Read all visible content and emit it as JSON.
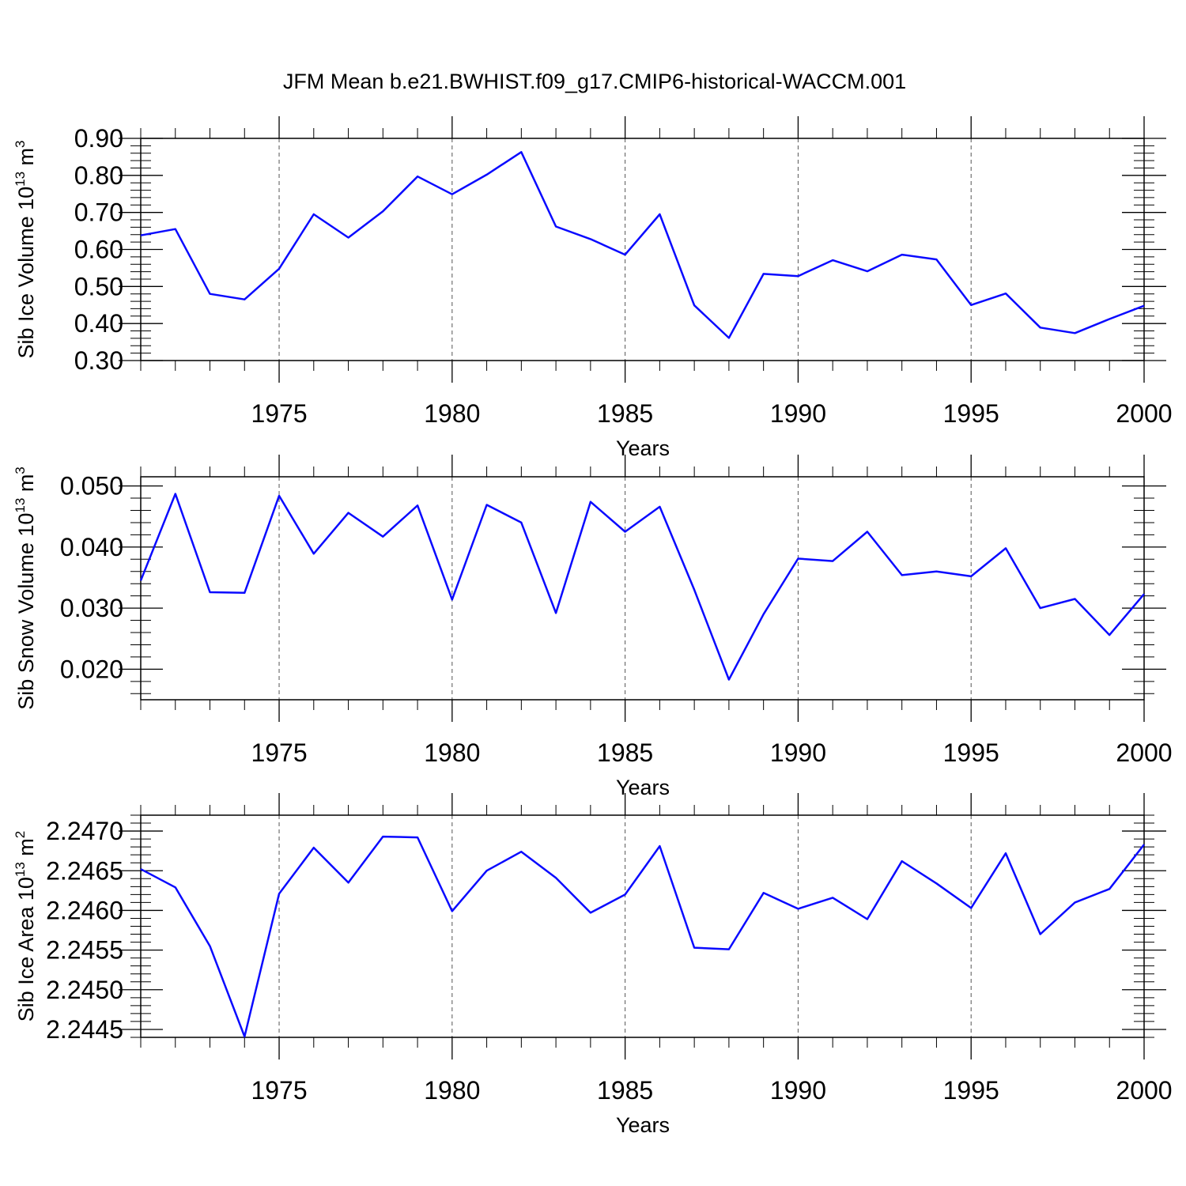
{
  "title": "JFM Mean b.e21.BWHIST.f09_g17.CMIP6-historical-WACCM.001",
  "colors": {
    "line": "#0a0aff",
    "axis": "#000000",
    "grid": "#555555"
  },
  "chart_data": [
    {
      "type": "line",
      "ylabel": {
        "main": "Sib Ice Volume 10",
        "exp13": "13",
        "unit": " m",
        "exp3": "3"
      },
      "xlabel": "Years",
      "xlim": [
        1971,
        2000
      ],
      "ylim": [
        0.3,
        0.9
      ],
      "yticks": [
        0.3,
        0.4,
        0.5,
        0.6,
        0.7,
        0.8,
        0.9
      ],
      "ytick_labels": [
        "0.30",
        "0.40",
        "0.50",
        "0.60",
        "0.70",
        "0.80",
        "0.90"
      ],
      "xticks": [
        1975,
        1980,
        1985,
        1990,
        1995,
        2000
      ],
      "xtick_labels": [
        "1975",
        "1980",
        "1985",
        "1990",
        "1995",
        "2000"
      ],
      "grid": "vertical dashed at major x ticks",
      "series": [
        {
          "name": "Sib Ice Volume",
          "x": [
            1971,
            1972,
            1973,
            1974,
            1975,
            1976,
            1977,
            1978,
            1979,
            1980,
            1981,
            1982,
            1983,
            1984,
            1985,
            1986,
            1987,
            1988,
            1989,
            1990,
            1991,
            1992,
            1993,
            1994,
            1995,
            1996,
            1997,
            1998,
            1999,
            2000
          ],
          "values": [
            0.638,
            0.655,
            0.48,
            0.465,
            0.548,
            0.695,
            0.632,
            0.703,
            0.797,
            0.749,
            0.802,
            0.863,
            0.662,
            0.628,
            0.586,
            0.695,
            0.449,
            0.361,
            0.534,
            0.528,
            0.571,
            0.541,
            0.586,
            0.573,
            0.45,
            0.481,
            0.389,
            0.374,
            0.412,
            0.448
          ]
        }
      ]
    },
    {
      "type": "line",
      "ylabel": {
        "main": "Sib Snow Volume 10",
        "exp13": "13",
        "unit": " m",
        "exp3": "3"
      },
      "xlabel": "Years",
      "xlim": [
        1971,
        2000
      ],
      "ylim": [
        0.015,
        0.0515
      ],
      "yticks": [
        0.02,
        0.03,
        0.04,
        0.05
      ],
      "ytick_labels": [
        "0.020",
        "0.030",
        "0.040",
        "0.050"
      ],
      "xticks": [
        1975,
        1980,
        1985,
        1990,
        1995,
        2000
      ],
      "xtick_labels": [
        "1975",
        "1980",
        "1985",
        "1990",
        "1995",
        "2000"
      ],
      "grid": "vertical dashed at major x ticks",
      "series": [
        {
          "name": "Sib Snow Volume",
          "x": [
            1971,
            1972,
            1973,
            1974,
            1975,
            1976,
            1977,
            1978,
            1979,
            1980,
            1981,
            1982,
            1983,
            1984,
            1985,
            1986,
            1987,
            1988,
            1989,
            1990,
            1991,
            1992,
            1993,
            1994,
            1995,
            1996,
            1997,
            1998,
            1999,
            2000
          ],
          "values": [
            0.0345,
            0.0487,
            0.0326,
            0.0325,
            0.0484,
            0.0389,
            0.0456,
            0.0417,
            0.0468,
            0.0314,
            0.0469,
            0.044,
            0.0292,
            0.0474,
            0.0425,
            0.0466,
            0.033,
            0.0183,
            0.029,
            0.0381,
            0.0377,
            0.0425,
            0.0354,
            0.036,
            0.0352,
            0.0398,
            0.03,
            0.0315,
            0.0256,
            0.0323
          ]
        }
      ]
    },
    {
      "type": "line",
      "ylabel": {
        "main": "Sib Ice Area 10",
        "exp13": "13",
        "unit": " m",
        "exp3": "2"
      },
      "xlabel": "Years",
      "xlim": [
        1971,
        2000
      ],
      "ylim": [
        2.2444,
        2.2472
      ],
      "yticks": [
        2.2445,
        2.245,
        2.2455,
        2.246,
        2.2465,
        2.247
      ],
      "ytick_labels": [
        "2.2445",
        "2.2450",
        "2.2455",
        "2.2460",
        "2.2465",
        "2.2470"
      ],
      "xticks": [
        1975,
        1980,
        1985,
        1990,
        1995,
        2000
      ],
      "xtick_labels": [
        "1975",
        "1980",
        "1985",
        "1990",
        "1995",
        "2000"
      ],
      "grid": "vertical dashed at major x ticks",
      "series": [
        {
          "name": "Sib Ice Area",
          "x": [
            1971,
            1972,
            1973,
            1974,
            1975,
            1976,
            1977,
            1978,
            1979,
            1980,
            1981,
            1982,
            1983,
            1984,
            1985,
            1986,
            1987,
            1988,
            1989,
            1990,
            1991,
            1992,
            1993,
            1994,
            1995,
            1996,
            1997,
            1998,
            1999,
            2000
          ],
          "values": [
            2.24652,
            2.24629,
            2.24555,
            2.24441,
            2.24621,
            2.24679,
            2.24635,
            2.24693,
            2.24692,
            2.24599,
            2.2465,
            2.24674,
            2.24641,
            2.24597,
            2.2462,
            2.24681,
            2.24553,
            2.24551,
            2.24622,
            2.24602,
            2.24616,
            2.24589,
            2.24662,
            2.24634,
            2.24603,
            2.24672,
            2.2457,
            2.2461,
            2.24627,
            2.24683
          ]
        }
      ]
    }
  ]
}
